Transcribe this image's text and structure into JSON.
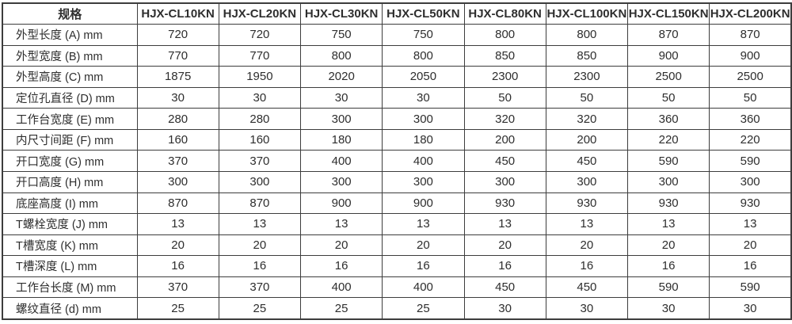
{
  "table": {
    "spec_label": "规格",
    "models": [
      "HJX-CL10KN",
      "HJX-CL20KN",
      "HJX-CL30KN",
      "HJX-CL50KN",
      "HJX-CL80KN",
      "HJX-CL100KN",
      "HJX-CL150KN",
      "HJX-CL200KN"
    ],
    "rows": [
      {
        "label": "外型长度 (A) mm",
        "values": [
          "720",
          "720",
          "750",
          "750",
          "800",
          "800",
          "870",
          "870"
        ]
      },
      {
        "label": "外型宽度 (B) mm",
        "values": [
          "770",
          "770",
          "800",
          "800",
          "850",
          "850",
          "900",
          "900"
        ]
      },
      {
        "label": "外型高度 (C) mm",
        "values": [
          "1875",
          "1950",
          "2020",
          "2050",
          "2300",
          "2300",
          "2500",
          "2500"
        ]
      },
      {
        "label": "定位孔直径 (D) mm",
        "values": [
          "30",
          "30",
          "30",
          "30",
          "50",
          "50",
          "50",
          "50"
        ]
      },
      {
        "label": "工作台宽度 (E) mm",
        "values": [
          "280",
          "280",
          "300",
          "300",
          "320",
          "320",
          "360",
          "360"
        ]
      },
      {
        "label": "内尺寸间距 (F) mm",
        "values": [
          "160",
          "160",
          "180",
          "180",
          "200",
          "200",
          "220",
          "220"
        ]
      },
      {
        "label": "开口宽度 (G) mm",
        "values": [
          "370",
          "370",
          "400",
          "400",
          "450",
          "450",
          "590",
          "590"
        ]
      },
      {
        "label": "开口高度 (H) mm",
        "values": [
          "300",
          "300",
          "300",
          "300",
          "300",
          "300",
          "300",
          "300"
        ]
      },
      {
        "label": "底座高度 (I) mm",
        "values": [
          "870",
          "870",
          "900",
          "900",
          "930",
          "930",
          "930",
          "930"
        ]
      },
      {
        "label": "T螺栓宽度 (J) mm",
        "values": [
          "13",
          "13",
          "13",
          "13",
          "13",
          "13",
          "13",
          "13"
        ]
      },
      {
        "label": "T槽宽度 (K) mm",
        "values": [
          "20",
          "20",
          "20",
          "20",
          "20",
          "20",
          "20",
          "20"
        ]
      },
      {
        "label": "T槽深度 (L) mm",
        "values": [
          "16",
          "16",
          "16",
          "16",
          "16",
          "16",
          "16",
          "16"
        ]
      },
      {
        "label": "工作台长度 (M) mm",
        "values": [
          "370",
          "370",
          "400",
          "400",
          "450",
          "450",
          "590",
          "590"
        ]
      },
      {
        "label": "螺纹直径 (d) mm",
        "values": [
          "25",
          "25",
          "25",
          "25",
          "30",
          "30",
          "30",
          "30"
        ]
      }
    ]
  },
  "colors": {
    "border": "#3d3d3d",
    "text": "#2e2e2e",
    "background": "#ffffff"
  }
}
